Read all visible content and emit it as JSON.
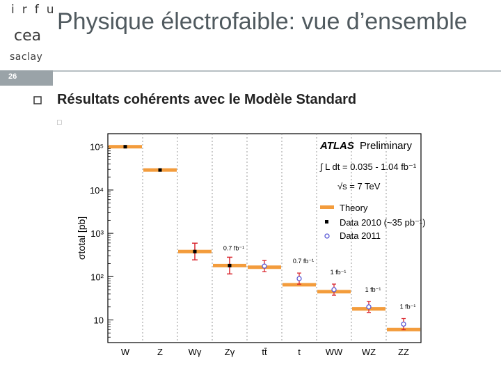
{
  "header": {
    "logo_irfu": "irfu",
    "logo_saclay": "saclay",
    "slide_number": "26",
    "title": "Physique électrofaible: vue d’ensemble"
  },
  "content": {
    "bullet_1": "Résultats cohérents avec le Modèle Standard"
  },
  "colors": {
    "title": "#505a5f",
    "theory": "#f39c3c",
    "data2010": "#000000",
    "data2011": "#5a5ad6",
    "error": "#d9262e"
  },
  "chart_data": {
    "type": "scatter",
    "ylabel": "σtotal [pb]",
    "yscale": "log",
    "ylim": [
      3,
      200000
    ],
    "y_ticks": [
      "10",
      "10²",
      "10³",
      "10⁴",
      "10⁵"
    ],
    "categories": [
      "W",
      "Z",
      "Wγ",
      "Zγ",
      "tt̄",
      "t",
      "WW",
      "WZ",
      "ZZ"
    ],
    "theory": [
      100000,
      29000,
      380,
      180,
      165,
      65,
      45,
      18,
      6
    ],
    "data2010": [
      100000,
      29000,
      380,
      180,
      null,
      null,
      null,
      null,
      null
    ],
    "data2011": [
      null,
      null,
      null,
      null,
      175,
      90,
      50,
      20,
      8
    ],
    "luminosity_labels": [
      {
        "category": "Zγ",
        "text": "0.7 fb⁻¹"
      },
      {
        "category": "t",
        "text": "0.7 fb⁻¹"
      },
      {
        "category": "WW",
        "text": "1 fb⁻¹"
      },
      {
        "category": "WZ",
        "text": "1 fb⁻¹"
      },
      {
        "category": "ZZ",
        "text": "1 fb⁻¹"
      }
    ],
    "legend": {
      "atlas": "ATLAS",
      "preliminary": "Preliminary",
      "lumi": "∫ L dt = 0.035 - 1.04 fb⁻¹",
      "energy": "√s = 7 TeV",
      "entries": [
        "Theory",
        "Data 2010  (~35 pb⁻¹)",
        "Data 2011"
      ]
    }
  }
}
